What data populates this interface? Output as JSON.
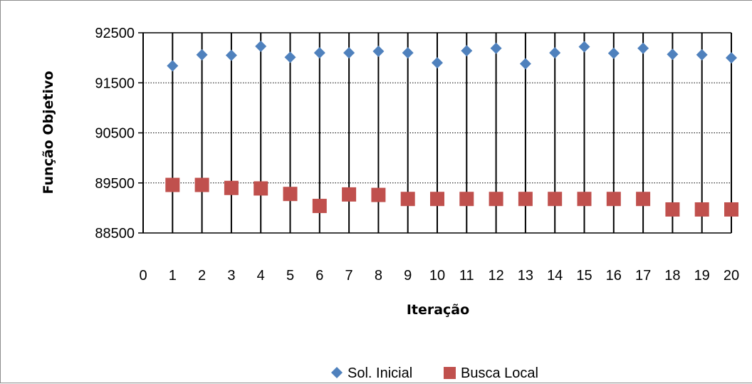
{
  "chart_data": {
    "type": "scatter",
    "title": "",
    "xlabel": "Iteração",
    "ylabel": "Função Objetivo",
    "x": [
      1,
      2,
      3,
      4,
      5,
      6,
      7,
      8,
      9,
      10,
      11,
      12,
      13,
      14,
      15,
      16,
      17,
      18,
      19,
      20
    ],
    "xlim": [
      0,
      20
    ],
    "xticks": [
      "0",
      "1",
      "2",
      "3",
      "4",
      "5",
      "6",
      "7",
      "8",
      "9",
      "10",
      "11",
      "12",
      "13",
      "14",
      "15",
      "16",
      "17",
      "18",
      "19",
      "20"
    ],
    "ylim": [
      88500,
      92500
    ],
    "yticks": [
      "88500",
      "89500",
      "90500",
      "91500",
      "92500"
    ],
    "grid": {
      "horizontal": "dotted",
      "vertical": "solid"
    },
    "legend_position": "bottom",
    "series": [
      {
        "name": "Sol. Inicial",
        "marker": "diamond",
        "color": "#4f81bd",
        "values": [
          91840,
          92060,
          92050,
          92230,
          92010,
          92100,
          92100,
          92130,
          92100,
          91900,
          92140,
          92190,
          91880,
          92100,
          92220,
          92090,
          92190,
          92070,
          92060,
          92000
        ]
      },
      {
        "name": "Busca Local",
        "marker": "square",
        "color": "#c0504d",
        "values": [
          89460,
          89460,
          89400,
          89390,
          89280,
          89040,
          89270,
          89260,
          89180,
          89180,
          89180,
          89180,
          89180,
          89180,
          89180,
          89180,
          89180,
          88970,
          88970,
          88970
        ]
      }
    ]
  }
}
